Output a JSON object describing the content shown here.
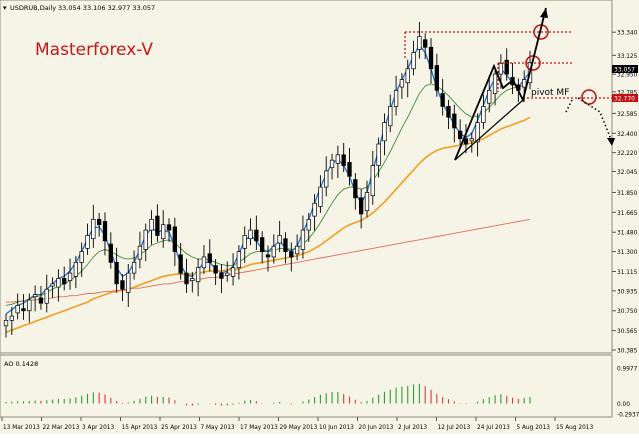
{
  "window": {
    "symbol_label": "USDRUB,Daily",
    "ohlc_label": "33.054 33.106 32.977 33.057"
  },
  "annotations": {
    "watermark": "Masterforex-V",
    "pivot_label": "pivot MF"
  },
  "colors": {
    "background": "#F5F4E6",
    "candle_up": "#ffffff",
    "candle_down": "#000000",
    "ma_fast": "#1E6FD9",
    "ma_mid": "#3A8F3A",
    "ma_orange": "#F0A020",
    "ma_slow": "#E0705A",
    "ao_up": "#2E9E2E",
    "ao_down": "#D23C3C",
    "annotation_red": "#C01010"
  },
  "chart_data": [
    {
      "type": "candlestick",
      "title": "USDRUB,Daily",
      "ylim": [
        30.385,
        33.5
      ],
      "price_axis_ticks": [
        "33.340",
        "33.125",
        "32.950",
        "32.785",
        "32.585",
        "32.400",
        "32.220",
        "32.045",
        "31.850",
        "31.665",
        "31.480",
        "31.300",
        "31.115",
        "30.935",
        "30.750",
        "30.565",
        "30.385"
      ],
      "current_price": "33.057",
      "pivot_price": "32.770",
      "date_axis_ticks": [
        "13 Mar 2013",
        "22 Mar 2013",
        "3 Apr 2013",
        "15 Apr 2013",
        "25 Apr 2013",
        "7 May 2013",
        "17 May 2013",
        "29 May 2013",
        "10 Jun 2013",
        "20 Jun 2013",
        "2 Jul 2013",
        "12 Jul 2013",
        "24 Jul 2013",
        "5 Aug 2013",
        "15 Aug 2013"
      ],
      "close_series": [
        30.66,
        30.7,
        30.8,
        30.75,
        30.85,
        30.9,
        30.82,
        30.95,
        31.0,
        31.05,
        31.0,
        31.1,
        31.2,
        31.3,
        31.45,
        31.6,
        31.55,
        31.4,
        31.2,
        31.0,
        30.95,
        31.1,
        31.2,
        31.35,
        31.5,
        31.6,
        31.45,
        31.55,
        31.5,
        31.3,
        31.1,
        31.0,
        31.05,
        31.15,
        31.25,
        31.2,
        31.1,
        31.05,
        31.1,
        31.15,
        31.3,
        31.45,
        31.5,
        31.4,
        31.3,
        31.25,
        31.35,
        31.45,
        31.3,
        31.25,
        31.35,
        31.5,
        31.6,
        31.75,
        31.9,
        32.05,
        32.15,
        32.2,
        32.1,
        32.0,
        31.8,
        31.65,
        31.85,
        32.1,
        32.3,
        32.5,
        32.65,
        32.8,
        32.9,
        33.0,
        33.15,
        33.3,
        33.2,
        33.0,
        32.8,
        32.65,
        32.55,
        32.45,
        32.35,
        32.3,
        32.35,
        32.5,
        32.65,
        32.8,
        32.95,
        33.05,
        32.95,
        32.85,
        32.8,
        32.9,
        33.057
      ],
      "moving_averages": [
        {
          "color": "ma_fast",
          "values": [
            30.72,
            30.76,
            30.8,
            30.82,
            30.86,
            30.9,
            30.9,
            30.95,
            31.0,
            31.05,
            31.07,
            31.12,
            31.2,
            31.3,
            31.42,
            31.52,
            31.53,
            31.45,
            31.3,
            31.15,
            31.07,
            31.1,
            31.2,
            31.32,
            31.45,
            31.52,
            31.48,
            31.5,
            31.48,
            31.35,
            31.18,
            31.08,
            31.07,
            31.13,
            31.2,
            31.2,
            31.14,
            31.1,
            31.12,
            31.16,
            31.28,
            31.4,
            31.45,
            31.4,
            31.32,
            31.3,
            31.35,
            31.4,
            31.33,
            31.3,
            31.35,
            31.48,
            31.6,
            31.75,
            31.9,
            32.02,
            32.12,
            32.16,
            32.1,
            32.0,
            31.85,
            31.75,
            31.85,
            32.05,
            32.25,
            32.45,
            32.62,
            32.78,
            32.9,
            33.0,
            33.12,
            33.22,
            33.15,
            33.0,
            32.82,
            32.68,
            32.58,
            32.48,
            32.4,
            32.36,
            32.4,
            32.52,
            32.66,
            32.8,
            32.92,
            33.0,
            32.94,
            32.87,
            32.83,
            32.9,
            32.97
          ]
        },
        {
          "color": "ma_mid",
          "values": [
            30.8,
            30.81,
            30.83,
            30.84,
            30.86,
            30.88,
            30.89,
            30.92,
            30.95,
            30.98,
            31.0,
            31.03,
            31.07,
            31.12,
            31.18,
            31.25,
            31.3,
            31.32,
            31.3,
            31.27,
            31.24,
            31.23,
            31.24,
            31.27,
            31.31,
            31.36,
            31.38,
            31.4,
            31.41,
            31.38,
            31.33,
            31.28,
            31.25,
            31.23,
            31.23,
            31.22,
            31.2,
            31.18,
            31.17,
            31.17,
            31.2,
            31.24,
            31.28,
            31.3,
            31.3,
            31.3,
            31.31,
            31.33,
            31.33,
            31.32,
            31.33,
            31.37,
            31.42,
            31.49,
            31.57,
            31.66,
            31.75,
            31.83,
            31.88,
            31.9,
            31.9,
            31.88,
            31.9,
            31.96,
            32.04,
            32.13,
            32.23,
            32.34,
            32.45,
            32.55,
            32.66,
            32.77,
            32.84,
            32.86,
            32.84,
            32.8,
            32.75,
            32.69,
            32.63,
            32.58,
            32.55,
            32.56,
            32.59,
            32.64,
            32.7,
            32.76,
            32.8,
            32.82,
            32.83,
            32.85,
            32.89
          ]
        },
        {
          "color": "ma_orange",
          "values": [
            30.55,
            30.57,
            30.59,
            30.61,
            30.63,
            30.65,
            30.67,
            30.69,
            30.71,
            30.73,
            30.75,
            30.77,
            30.79,
            30.81,
            30.83,
            30.86,
            30.88,
            30.9,
            30.92,
            30.93,
            30.94,
            30.95,
            30.97,
            30.99,
            31.01,
            31.03,
            31.05,
            31.07,
            31.08,
            31.09,
            31.09,
            31.09,
            31.09,
            31.1,
            31.11,
            31.12,
            31.12,
            31.12,
            31.13,
            31.13,
            31.14,
            31.16,
            31.18,
            31.19,
            31.2,
            31.21,
            31.22,
            31.23,
            31.24,
            31.25,
            31.26,
            31.28,
            31.3,
            31.33,
            31.36,
            31.4,
            31.44,
            31.48,
            31.52,
            31.55,
            31.57,
            31.59,
            31.62,
            31.66,
            31.71,
            31.76,
            31.82,
            31.88,
            31.94,
            32.0,
            32.06,
            32.12,
            32.17,
            32.21,
            32.24,
            32.26,
            32.27,
            32.28,
            32.29,
            32.3,
            32.31,
            32.33,
            32.35,
            32.38,
            32.41,
            32.44,
            32.46,
            32.48,
            32.5,
            32.52,
            32.55
          ]
        },
        {
          "color": "ma_slow",
          "values": [
            30.83,
            30.83,
            30.84,
            30.84,
            30.85,
            30.85,
            30.86,
            30.86,
            30.87,
            30.88,
            30.88,
            30.89,
            30.89,
            30.9,
            30.91,
            30.91,
            30.92,
            30.93,
            30.93,
            30.94,
            30.94,
            30.95,
            30.96,
            30.96,
            30.97,
            30.98,
            30.99,
            31.0,
            31.0,
            31.01,
            31.02,
            31.02,
            31.03,
            31.04,
            31.05,
            31.06,
            31.06,
            31.07,
            31.08,
            31.09,
            31.1,
            31.11,
            31.12,
            31.13,
            31.14,
            31.15,
            31.16,
            31.17,
            31.18,
            31.19,
            31.2,
            31.21,
            31.22,
            31.23,
            31.24,
            31.25,
            31.26,
            31.27,
            31.28,
            31.29,
            31.3,
            31.31,
            31.32,
            31.33,
            31.34,
            31.35,
            31.36,
            31.37,
            31.38,
            31.39,
            31.4,
            31.41,
            31.42,
            31.43,
            31.44,
            31.45,
            31.46,
            31.47,
            31.48,
            31.49,
            31.5,
            31.51,
            31.52,
            31.53,
            31.54,
            31.55,
            31.56,
            31.57,
            31.58,
            31.59,
            31.6
          ]
        }
      ]
    },
    {
      "type": "bar",
      "title": "AO 0.1428",
      "ylim": [
        -0.2937,
        0.9977
      ],
      "axis_ticks": [
        "0.9977",
        "0.00",
        "-0.2937"
      ]
    }
  ]
}
